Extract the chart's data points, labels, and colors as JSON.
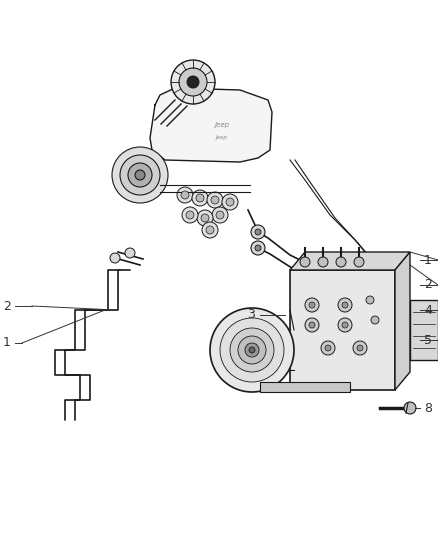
{
  "bg_color": "#ffffff",
  "lc": "#1a1a1a",
  "cc": "#333333",
  "figsize": [
    4.38,
    5.33
  ],
  "dpi": 100,
  "xlim": [
    0,
    438
  ],
  "ylim": [
    0,
    533
  ]
}
